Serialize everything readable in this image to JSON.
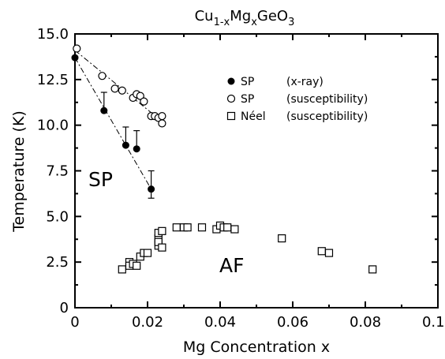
{
  "chart_data": {
    "type": "scatter",
    "title": "Cu1-xMgxGeO3",
    "title_parts": {
      "a": "Cu",
      "b": "1-x",
      "c": "Mg",
      "d": "x",
      "e": "GeO",
      "f": "3"
    },
    "xlabel": "Mg Concentration x",
    "ylabel": "Temperature (K)",
    "xlim": [
      0,
      0.1
    ],
    "ylim": [
      0,
      15
    ],
    "x_ticks": [
      0,
      0.02,
      0.04,
      0.06,
      0.08,
      0.1
    ],
    "x_tick_labels": [
      "0",
      "0.02",
      "0.04",
      "0.06",
      "0.08",
      "0.10"
    ],
    "y_ticks": [
      0,
      2.5,
      5,
      7.5,
      10,
      12.5,
      15
    ],
    "y_tick_labels": [
      "0",
      "2.5",
      "5.0",
      "7.5",
      "10.0",
      "12.5",
      "15.0"
    ],
    "grid": false,
    "legend_position": "top-right",
    "series": [
      {
        "name": "SP",
        "method": "(x-ray)",
        "marker": "filled-circle",
        "points": [
          {
            "x": 0.0,
            "y": 13.7
          },
          {
            "x": 0.008,
            "y": 10.8,
            "err_plus": 1.0,
            "err_minus": 0
          },
          {
            "x": 0.014,
            "y": 8.9,
            "err_plus": 1.0,
            "err_minus": 0
          },
          {
            "x": 0.017,
            "y": 8.7,
            "err_plus": 1.0,
            "err_minus": 0
          },
          {
            "x": 0.021,
            "y": 6.5,
            "err_plus": 1.0,
            "err_minus": 0.5
          }
        ]
      },
      {
        "name": "SP",
        "method": "(susceptibility)",
        "marker": "open-circle",
        "points": [
          {
            "x": 0.0005,
            "y": 14.2
          },
          {
            "x": 0.0075,
            "y": 12.7
          },
          {
            "x": 0.011,
            "y": 12.0
          },
          {
            "x": 0.013,
            "y": 11.9
          },
          {
            "x": 0.016,
            "y": 11.5
          },
          {
            "x": 0.017,
            "y": 11.7
          },
          {
            "x": 0.018,
            "y": 11.6
          },
          {
            "x": 0.019,
            "y": 11.3
          },
          {
            "x": 0.021,
            "y": 10.5
          },
          {
            "x": 0.022,
            "y": 10.5
          },
          {
            "x": 0.023,
            "y": 10.4
          },
          {
            "x": 0.024,
            "y": 10.5
          },
          {
            "x": 0.024,
            "y": 10.1
          }
        ]
      },
      {
        "name": "Néel",
        "method": "(susceptibility)",
        "marker": "open-square",
        "points": [
          {
            "x": 0.013,
            "y": 2.1
          },
          {
            "x": 0.015,
            "y": 2.5
          },
          {
            "x": 0.015,
            "y": 2.3
          },
          {
            "x": 0.016,
            "y": 2.4
          },
          {
            "x": 0.017,
            "y": 2.3
          },
          {
            "x": 0.018,
            "y": 2.8
          },
          {
            "x": 0.019,
            "y": 3.0
          },
          {
            "x": 0.02,
            "y": 3.0
          },
          {
            "x": 0.023,
            "y": 3.4
          },
          {
            "x": 0.023,
            "y": 3.8
          },
          {
            "x": 0.023,
            "y": 4.1
          },
          {
            "x": 0.023,
            "y": 3.6
          },
          {
            "x": 0.024,
            "y": 4.2
          },
          {
            "x": 0.024,
            "y": 3.3
          },
          {
            "x": 0.028,
            "y": 4.4
          },
          {
            "x": 0.03,
            "y": 4.4
          },
          {
            "x": 0.031,
            "y": 4.4
          },
          {
            "x": 0.035,
            "y": 4.4
          },
          {
            "x": 0.039,
            "y": 4.3
          },
          {
            "x": 0.04,
            "y": 4.5
          },
          {
            "x": 0.041,
            "y": 4.4
          },
          {
            "x": 0.042,
            "y": 4.4
          },
          {
            "x": 0.044,
            "y": 4.3
          },
          {
            "x": 0.057,
            "y": 3.8
          },
          {
            "x": 0.068,
            "y": 3.1
          },
          {
            "x": 0.07,
            "y": 3.0
          },
          {
            "x": 0.082,
            "y": 2.1
          }
        ]
      }
    ],
    "fit_lines": [
      {
        "points": [
          {
            "x": 0.0,
            "y": 14.1
          },
          {
            "x": 0.024,
            "y": 10.2
          }
        ]
      },
      {
        "points": [
          {
            "x": 0.0,
            "y": 13.7
          },
          {
            "x": 0.021,
            "y": 6.5
          }
        ]
      }
    ],
    "annotations": [
      {
        "text": "SP",
        "x": 0.0045,
        "y": 7.2
      },
      {
        "text": "AF",
        "x": 0.04,
        "y": 2.0
      }
    ]
  }
}
